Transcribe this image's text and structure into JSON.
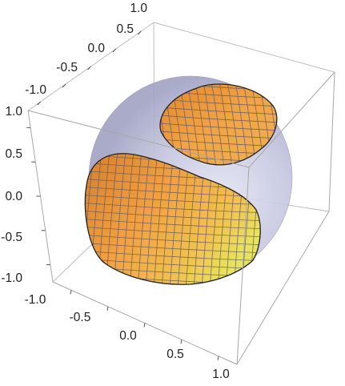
{
  "chart_data": {
    "type": "surface3d",
    "title": "",
    "xlabel": "",
    "ylabel": "",
    "zlabel": "",
    "box": true,
    "axes": {
      "x": {
        "range": [
          -1.0,
          1.0
        ],
        "ticks": [
          "-1.0",
          "-0.5",
          "0.0",
          "0.5",
          "1.0"
        ]
      },
      "y": {
        "range": [
          -1.0,
          1.0
        ],
        "ticks": [
          "-1.0",
          "-0.5",
          "0.0",
          "0.5",
          "1.0"
        ]
      },
      "z": {
        "range": [
          -1.0,
          1.0
        ],
        "ticks": [
          "-1.0",
          "-0.5",
          "0.0",
          "0.5",
          "1.0"
        ]
      }
    },
    "objects": [
      {
        "name": "",
        "shape": "sphere",
        "center": [
          0,
          0,
          0
        ],
        "radius": 1.0,
        "color": "#b7b8d6",
        "opacity": 0.55
      },
      {
        "name": "",
        "shape": "mesh-surface",
        "color": "#f0a040",
        "highlight": "#e6e25a",
        "mesh": true,
        "mesh_color": "#555566"
      },
      {
        "name": "",
        "shape": "mesh-surface",
        "color": "#f0a040",
        "highlight": "#e6e25a",
        "mesh": true,
        "mesh_color": "#555566"
      }
    ]
  }
}
